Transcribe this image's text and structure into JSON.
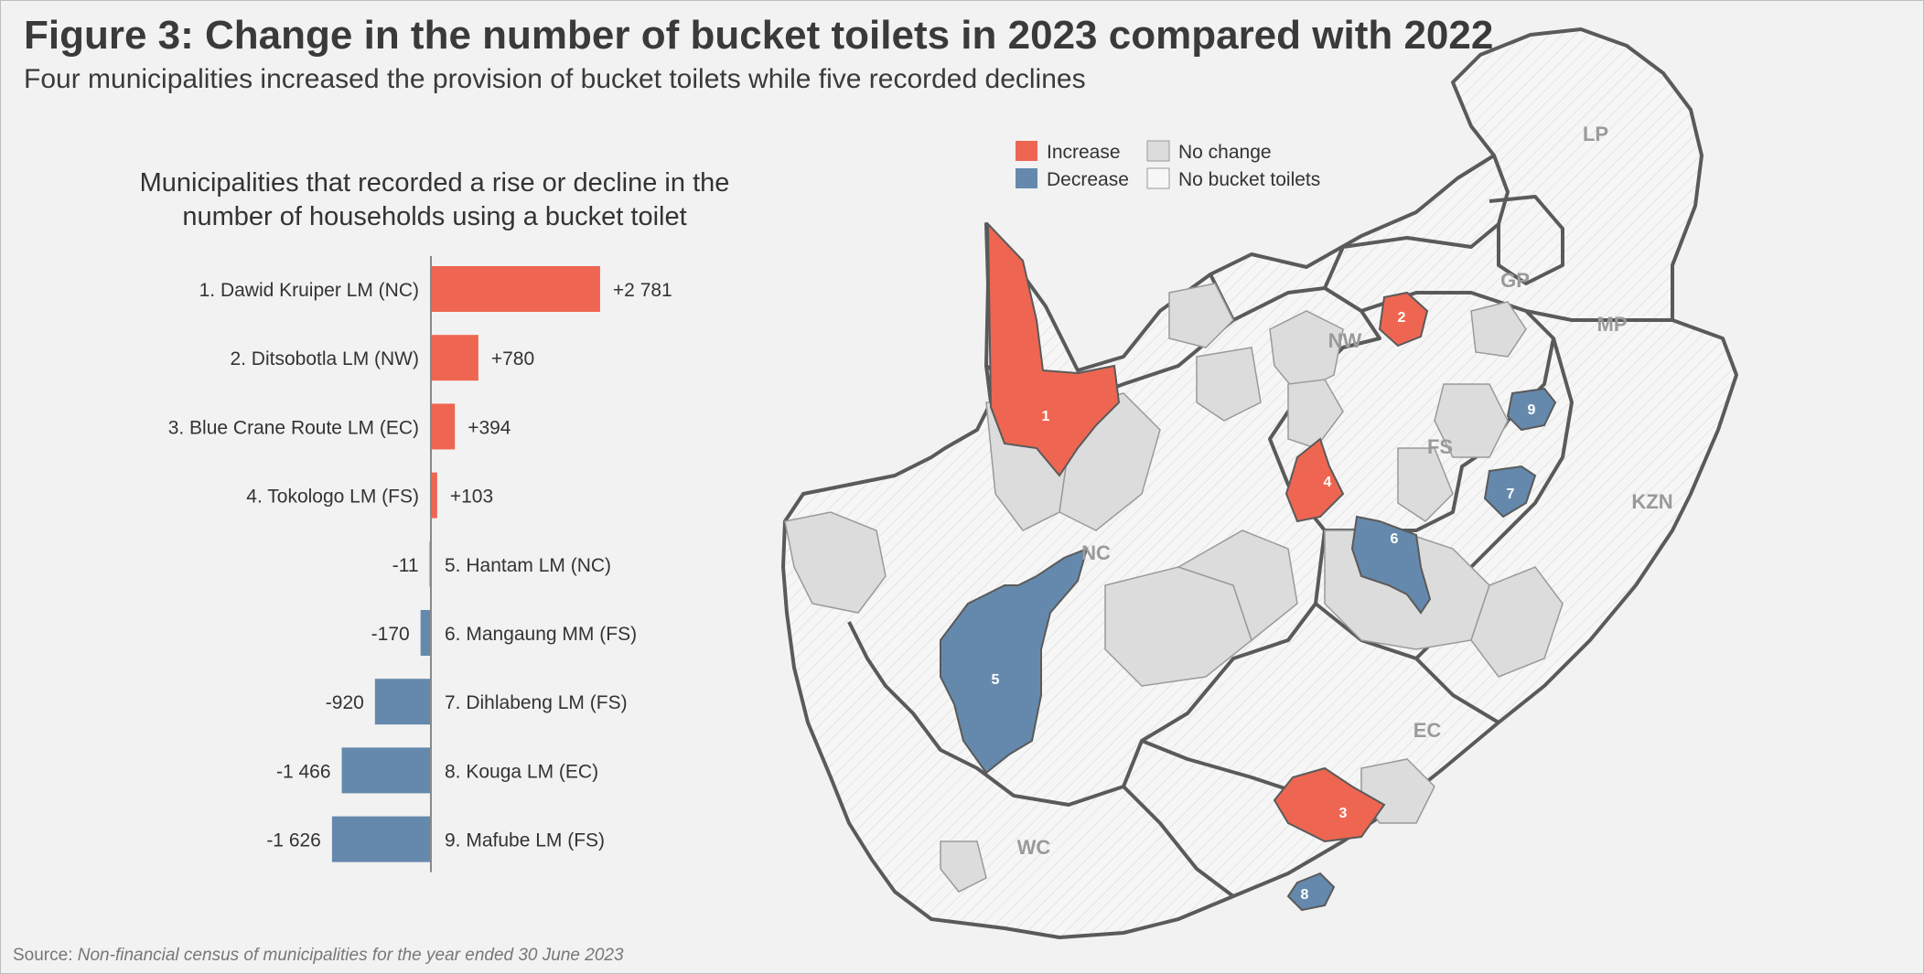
{
  "title": "Figure 3: Change in the number of bucket toilets in 2023 compared with 2022",
  "subtitle": "Four municipalities increased the provision of bucket toilets while five recorded declines",
  "chart_heading_line1": "Municipalities that recorded a rise or decline in the",
  "chart_heading_line2": "number of households using a bucket toilet",
  "source_label": "Source:",
  "source_text": "Non-financial census of municipalities for the year ended 30 June 2023",
  "colors": {
    "increase": "#ee6651",
    "decrease": "#6589ac",
    "no_change": "#dcdcdc",
    "no_bucket": "#f7f7f7",
    "border": "#5a5a5a"
  },
  "chart_data": {
    "type": "bar",
    "orientation": "horizontal",
    "categories": [
      "1. Dawid Kruiper LM  (NC)",
      "2. Ditsobotla LM  (NW)",
      "3. Blue Crane Route LM  (EC)",
      "4. Tokologo LM  (FS)",
      "5. Hantam LM  (NC)",
      "6. Mangaung MM  (FS)",
      "7. Dihlabeng LM  (FS)",
      "8. Kouga LM  (EC)",
      "9. Mafube LM  (FS)"
    ],
    "values": [
      2781,
      780,
      394,
      103,
      -11,
      -170,
      -920,
      -1466,
      -1626
    ],
    "value_labels": [
      "+2 781",
      "+780",
      "+394",
      "+103",
      "-11",
      "-170",
      "-920",
      "-1 466",
      "-1 626"
    ],
    "title": "Municipalities that recorded a rise or decline in the number of households using a bucket toilet",
    "xlabel": "",
    "ylabel": "",
    "xlim": [
      -1626,
      2781
    ],
    "grid": false
  },
  "map": {
    "legend": {
      "increase": "Increase",
      "no_change": "No change",
      "decrease": "Decrease",
      "no_bucket": "No bucket toilets"
    },
    "provinces": {
      "lp": "LP",
      "gp": "GP",
      "mp": "MP",
      "nw": "NW",
      "fs": "FS",
      "kzn": "KZN",
      "nc": "NC",
      "ec": "EC",
      "wc": "WC"
    },
    "markers": [
      "1",
      "2",
      "3",
      "4",
      "5",
      "6",
      "7",
      "8",
      "9"
    ]
  }
}
